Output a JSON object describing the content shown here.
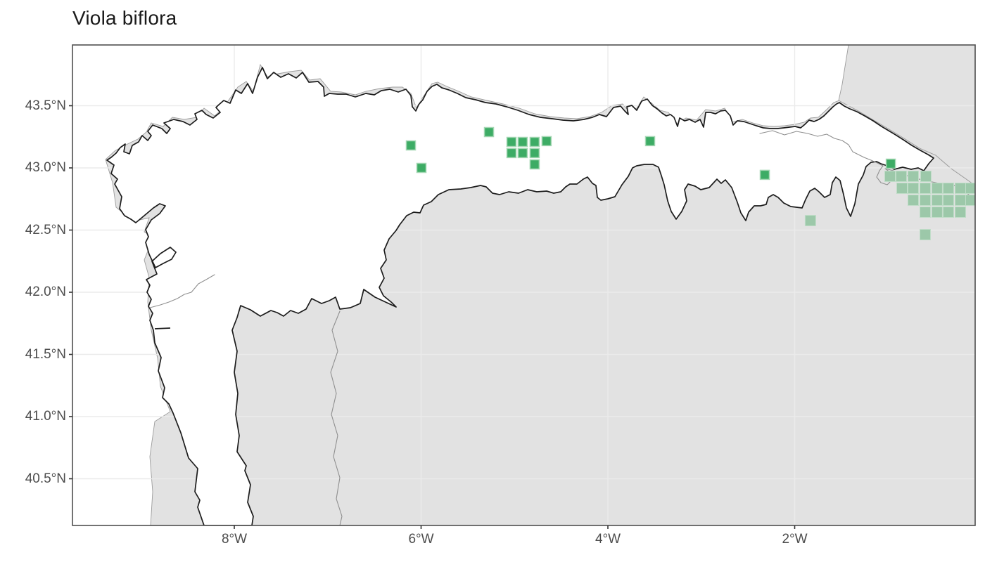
{
  "chart_data": {
    "type": "scatter",
    "title": "Viola biflora",
    "xlabel": "",
    "ylabel": "",
    "xlim": [
      -9.73,
      -0.06
    ],
    "ylim": [
      40.12,
      43.99
    ],
    "grid": true,
    "x_ticks": [
      {
        "label": "8°W",
        "lon": -8
      },
      {
        "label": "6°W",
        "lon": -6
      },
      {
        "label": "4°W",
        "lon": -4
      },
      {
        "label": "2°W",
        "lon": -2
      }
    ],
    "y_ticks": [
      {
        "label": "43.5°N",
        "lat": 43.5
      },
      {
        "label": "43.0°N",
        "lat": 43.0
      },
      {
        "label": "42.5°N",
        "lat": 42.5
      },
      {
        "label": "42.0°N",
        "lat": 42.0
      },
      {
        "label": "41.5°N",
        "lat": 41.5
      },
      {
        "label": "41.0°N",
        "lat": 41.0
      },
      {
        "label": "40.5°N",
        "lat": 40.5
      }
    ],
    "series": [
      {
        "name": "occurrences-dark",
        "marker": "square",
        "size": 13,
        "fill": "#3dac65",
        "border": "#a5d7b4",
        "points": [
          {
            "lon": -6.109,
            "lat": 43.181
          },
          {
            "lon": -5.996,
            "lat": 43.0
          },
          {
            "lon": -5.273,
            "lat": 43.288
          },
          {
            "lon": -5.032,
            "lat": 43.209
          },
          {
            "lon": -4.912,
            "lat": 43.209
          },
          {
            "lon": -4.784,
            "lat": 43.209
          },
          {
            "lon": -4.656,
            "lat": 43.215
          },
          {
            "lon": -5.032,
            "lat": 43.119
          },
          {
            "lon": -4.912,
            "lat": 43.119
          },
          {
            "lon": -4.784,
            "lat": 43.119
          },
          {
            "lon": -4.784,
            "lat": 43.028
          },
          {
            "lon": -3.548,
            "lat": 43.215
          },
          {
            "lon": -2.32,
            "lat": 42.944
          },
          {
            "lon": -0.971,
            "lat": 43.034
          }
        ]
      },
      {
        "name": "occurrences-light",
        "marker": "square",
        "size": 15,
        "fill": "#9cc8a9",
        "border": "#c0ddc8",
        "points": [
          {
            "lon": -1.831,
            "lat": 42.576
          },
          {
            "lon": -0.979,
            "lat": 42.932
          },
          {
            "lon": -0.859,
            "lat": 42.932
          },
          {
            "lon": -0.731,
            "lat": 42.932
          },
          {
            "lon": -0.595,
            "lat": 42.932
          },
          {
            "lon": -0.851,
            "lat": 42.836
          },
          {
            "lon": -0.731,
            "lat": 42.836
          },
          {
            "lon": -0.603,
            "lat": 42.836
          },
          {
            "lon": -0.475,
            "lat": 42.836
          },
          {
            "lon": -0.354,
            "lat": 42.836
          },
          {
            "lon": -0.226,
            "lat": 42.836
          },
          {
            "lon": -0.113,
            "lat": 42.836
          },
          {
            "lon": -0.731,
            "lat": 42.74
          },
          {
            "lon": -0.603,
            "lat": 42.74
          },
          {
            "lon": -0.475,
            "lat": 42.74
          },
          {
            "lon": -0.354,
            "lat": 42.74
          },
          {
            "lon": -0.226,
            "lat": 42.74
          },
          {
            "lon": -0.113,
            "lat": 42.74
          },
          {
            "lon": -0.603,
            "lat": 42.644
          },
          {
            "lon": -0.475,
            "lat": 42.644
          },
          {
            "lon": -0.354,
            "lat": 42.644
          },
          {
            "lon": -0.226,
            "lat": 42.644
          },
          {
            "lon": -0.603,
            "lat": 42.463
          }
        ]
      }
    ]
  },
  "style": {
    "land_fill": "#e2e2e2",
    "land_stroke": "#9c9c9c",
    "grid_color": "#ebebeb",
    "coast_color": "#1c1c1c",
    "innerline_color": "#8f8f8f",
    "panel_border_color": "#4f4f4f",
    "axis_text_color": "#4d4d4d",
    "title_color": "#1a1a1a"
  }
}
